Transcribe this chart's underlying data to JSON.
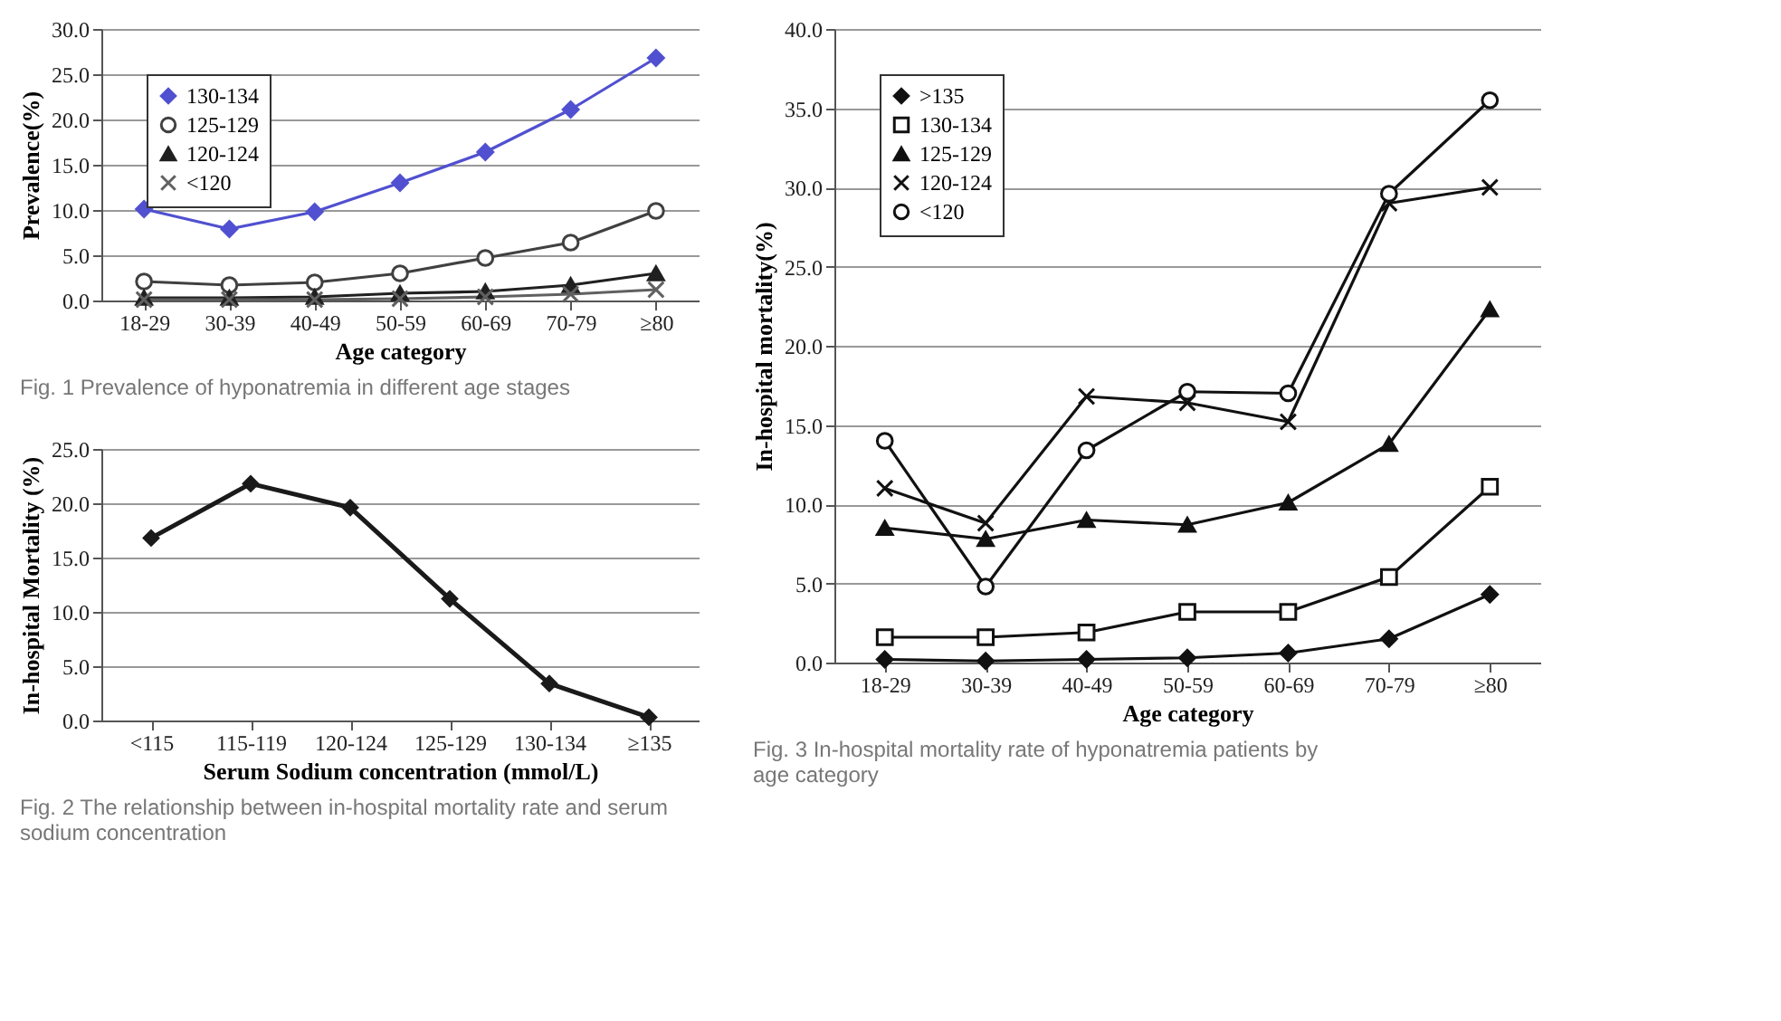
{
  "chart_data": [
    {
      "type": "line",
      "xlabel": "Age category",
      "ylabel": "Prevalence(%)",
      "categories": [
        "18-29",
        "30-39",
        "40-49",
        "50-59",
        "60-69",
        "70-79",
        "≥80"
      ],
      "series": [
        {
          "name": "130-134",
          "color": "#5050d0",
          "marker": "diamond",
          "values": [
            10.1,
            7.9,
            9.8,
            13.0,
            16.4,
            21.1,
            26.8
          ]
        },
        {
          "name": "125-129",
          "color": "#404040",
          "marker": "circle",
          "values": [
            2.1,
            1.7,
            2.0,
            3.0,
            4.7,
            6.4,
            9.9
          ]
        },
        {
          "name": "120-124",
          "color": "#202020",
          "marker": "triangle",
          "values": [
            0.3,
            0.3,
            0.4,
            0.8,
            1.0,
            1.7,
            3.0
          ]
        },
        {
          "name": "<120",
          "color": "#606060",
          "marker": "cross",
          "values": [
            0.1,
            0.1,
            0.1,
            0.2,
            0.4,
            0.7,
            1.2
          ]
        }
      ],
      "ylim": [
        0,
        30
      ],
      "yticks": [
        {
          "value": 0,
          "label": "0.0"
        },
        {
          "value": 5,
          "label": "5.0"
        },
        {
          "value": 10,
          "label": "10.0"
        },
        {
          "value": 15,
          "label": "15.0"
        },
        {
          "value": 20,
          "label": "20.0"
        },
        {
          "value": 25,
          "label": "25.0"
        },
        {
          "value": 30,
          "label": "30.0"
        }
      ],
      "grid": "y",
      "legend": "top left",
      "annotations": [
        "Fig. 1 Prevalence of hyponatremia in different age stages"
      ]
    },
    {
      "type": "line",
      "xlabel": "Serum Sodium concentration (mmol/L)",
      "ylabel": "In-hospital Mortality (%)",
      "categories": [
        "<115",
        "115-119",
        "120-124",
        "125-129",
        "130-134",
        "≥135"
      ],
      "values": [
        16.8,
        21.8,
        19.6,
        11.2,
        3.4,
        0.3
      ],
      "color": "#1a1a1a",
      "marker": "diamond",
      "ylim": [
        0,
        25
      ],
      "yticks": [
        {
          "value": 0,
          "label": "0.0"
        },
        {
          "value": 5,
          "label": "5.0"
        },
        {
          "value": 10,
          "label": "10.0"
        },
        {
          "value": 15,
          "label": "15.0"
        },
        {
          "value": 20,
          "label": "20.0"
        },
        {
          "value": 25,
          "label": "25.0"
        }
      ],
      "grid": "y",
      "annotations": [
        "Fig. 2 The relationship between in-hospital mortality rate and serum sodium concentration"
      ]
    },
    {
      "type": "line",
      "xlabel": "Age category",
      "ylabel": "In-hospital mortality(%)",
      "categories": [
        "18-29",
        "30-39",
        "40-49",
        "50-59",
        "60-69",
        "70-79",
        "≥80"
      ],
      "series": [
        {
          "name": ">135",
          "color": "#111111",
          "marker": "diamond",
          "values": [
            0.2,
            0.1,
            0.2,
            0.3,
            0.6,
            1.5,
            4.3
          ]
        },
        {
          "name": "130-134",
          "color": "#111111",
          "marker": "square",
          "values": [
            1.6,
            1.6,
            1.9,
            3.2,
            3.2,
            5.4,
            11.1
          ]
        },
        {
          "name": "125-129",
          "color": "#111111",
          "marker": "triangle",
          "values": [
            8.5,
            7.8,
            9.0,
            8.7,
            10.1,
            13.8,
            22.3
          ]
        },
        {
          "name": "120-124",
          "color": "#111111",
          "marker": "cross",
          "values": [
            11.0,
            8.8,
            16.8,
            16.4,
            15.2,
            29.0,
            30.0
          ]
        },
        {
          "name": "<120",
          "color": "#111111",
          "marker": "circle",
          "values": [
            14.0,
            4.8,
            13.4,
            17.1,
            17.0,
            29.6,
            35.5
          ]
        }
      ],
      "ylim": [
        0,
        40
      ],
      "yticks": [
        {
          "value": 0,
          "label": "0.0"
        },
        {
          "value": 5,
          "label": "5.0"
        },
        {
          "value": 10,
          "label": "10.0"
        },
        {
          "value": 15,
          "label": "15.0"
        },
        {
          "value": 20,
          "label": "20.0"
        },
        {
          "value": 25,
          "label": "25.0"
        },
        {
          "value": 30,
          "label": "30.0"
        },
        {
          "value": 35,
          "label": "35.0"
        },
        {
          "value": 40,
          "label": "40.0"
        }
      ],
      "grid": "y",
      "legend": "top left",
      "annotations": [
        "Fig. 3 In-hospital mortality rate of hyponatremia patients by age category"
      ]
    }
  ]
}
